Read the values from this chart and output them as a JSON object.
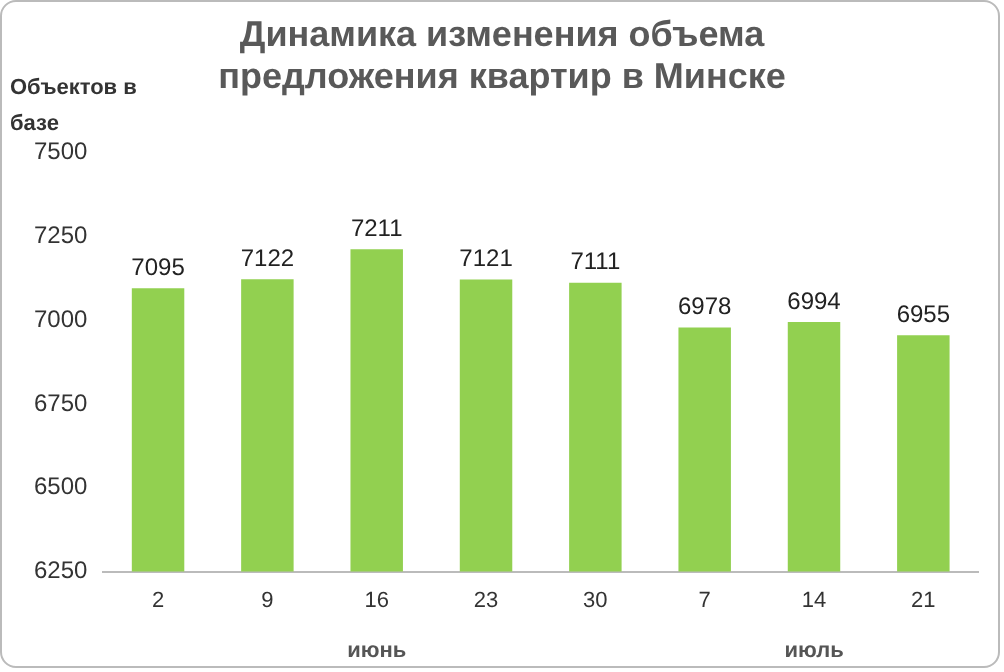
{
  "chart_data": {
    "type": "bar",
    "title": "Динамика изменения объема предложения квартир в Минске",
    "ylabel": "Объектов в базе",
    "categories": [
      "2",
      "9",
      "16",
      "23",
      "30",
      "7",
      "14",
      "21"
    ],
    "values": [
      7095,
      7122,
      7211,
      7121,
      7111,
      6978,
      6994,
      6955
    ],
    "color": "#92d050",
    "ylim": [
      6250,
      7500
    ],
    "yticks": [
      6250,
      6500,
      6750,
      7000,
      7250,
      7500
    ],
    "grid": false,
    "legend": false,
    "data_labels": true,
    "annotations": [
      "июнь",
      "июль"
    ]
  }
}
